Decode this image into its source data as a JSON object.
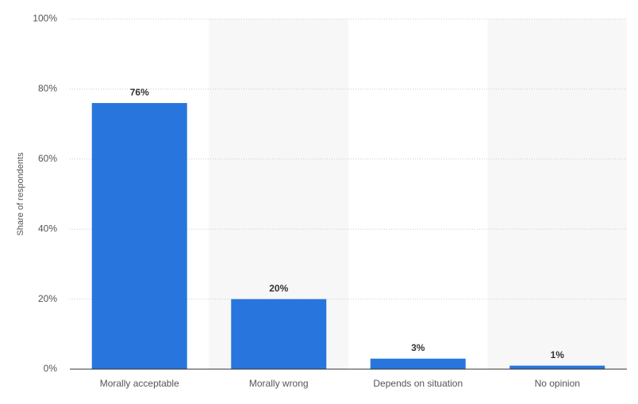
{
  "chart_data": {
    "type": "bar",
    "y_label": "Share of respondents",
    "categories": [
      "Morally acceptable",
      "Morally wrong",
      "Depends on situation",
      "No opinion"
    ],
    "values": [
      76,
      20,
      3,
      1
    ],
    "value_labels": [
      "76%",
      "20%",
      "3%",
      "1%"
    ],
    "color": "#2876dd",
    "ylim": [
      0,
      100
    ],
    "yticks": [
      {
        "value": 0,
        "label": "0%"
      },
      {
        "value": 20,
        "label": "20%"
      },
      {
        "value": 40,
        "label": "40%"
      },
      {
        "value": 60,
        "label": "60%"
      },
      {
        "value": 80,
        "label": "80%"
      },
      {
        "value": 100,
        "label": "100%"
      }
    ],
    "grid": true
  }
}
